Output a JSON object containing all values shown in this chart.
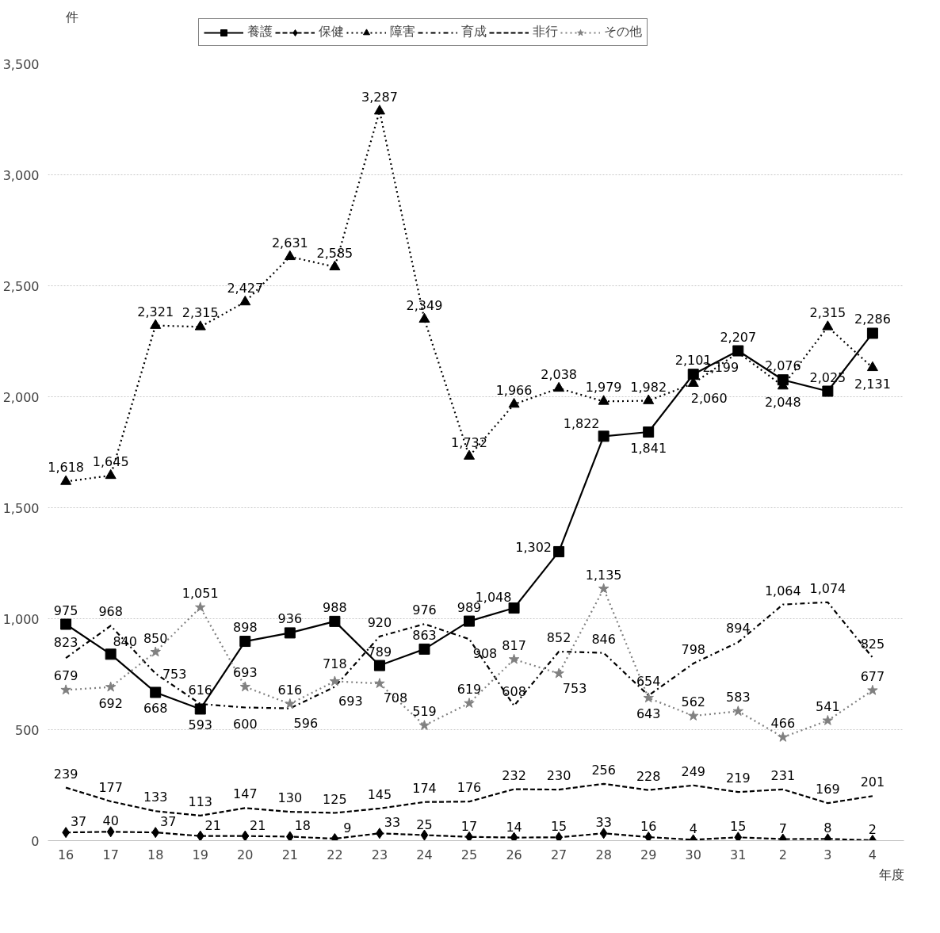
{
  "chart_data": {
    "type": "line",
    "xlabel": "年度",
    "annotations": [
      "件"
    ],
    "categories": [
      "16",
      "17",
      "18",
      "19",
      "20",
      "21",
      "22",
      "23",
      "24",
      "25",
      "26",
      "27",
      "28",
      "29",
      "30",
      "31",
      "2",
      "3",
      "4"
    ],
    "series": [
      {
        "name": "養護",
        "color": "#000000",
        "marker": "square",
        "line_style": "solid",
        "values": [
          975,
          840,
          668,
          593,
          898,
          936,
          988,
          789,
          863,
          989,
          1048,
          1302,
          1822,
          1841,
          2101,
          2207,
          2076,
          2025,
          2286
        ],
        "value_labels": [
          "975",
          "840",
          "668",
          "593",
          "898",
          "936",
          "988",
          "789",
          "863",
          "989",
          "1,048",
          "1,302",
          "1,822",
          "1,841",
          "2,101",
          "2,207",
          "2,076",
          "2,025",
          "2,286"
        ]
      },
      {
        "name": "保健",
        "color": "#000000",
        "marker": "diamond",
        "line_style": "dashed",
        "values": [
          37,
          40,
          37,
          21,
          21,
          18,
          9,
          33,
          25,
          17,
          14,
          15,
          33,
          16,
          4,
          15,
          7,
          8,
          2
        ],
        "value_labels": [
          "37",
          "40",
          "37",
          "21",
          "21",
          "18",
          "9",
          "33",
          "25",
          "17",
          "14",
          "15",
          "33",
          "16",
          "4",
          "15",
          "7",
          "8",
          "2"
        ]
      },
      {
        "name": "障害",
        "color": "#000000",
        "marker": "triangle",
        "line_style": "dotted",
        "values": [
          1618,
          1645,
          2321,
          2315,
          2427,
          2631,
          2585,
          3287,
          2349,
          1732,
          1966,
          2038,
          1979,
          1982,
          2060,
          2199,
          2048,
          2315,
          2131
        ],
        "value_labels": [
          "1,618",
          "1,645",
          "2,321",
          "2,315",
          "2,427",
          "2,631",
          "2,585",
          "3,287",
          "2,349",
          "1,732",
          "1,966",
          "2,038",
          "1,979",
          "1,982",
          "2,060",
          "2,199",
          "2,048",
          "2,315",
          "2,131"
        ]
      },
      {
        "name": "育成",
        "color": "#000000",
        "marker": "none",
        "line_style": "dashdot",
        "values": [
          823,
          968,
          753,
          616,
          600,
          596,
          693,
          920,
          976,
          908,
          608,
          852,
          846,
          654,
          798,
          894,
          1064,
          1074,
          825
        ],
        "value_labels": [
          "823",
          "968",
          "753",
          "616",
          "600",
          "596",
          "693",
          "920",
          "976",
          "908",
          "608",
          "852",
          "846",
          "654",
          "798",
          "894",
          "1,064",
          "1,074",
          "825"
        ]
      },
      {
        "name": "非行",
        "color": "#000000",
        "marker": "none",
        "line_style": "dashed",
        "values": [
          239,
          177,
          133,
          113,
          147,
          130,
          125,
          145,
          174,
          176,
          232,
          230,
          256,
          228,
          249,
          219,
          231,
          169,
          201
        ],
        "value_labels": [
          "239",
          "177",
          "133",
          "113",
          "147",
          "130",
          "125",
          "145",
          "174",
          "176",
          "232",
          "230",
          "256",
          "228",
          "249",
          "219",
          "231",
          "169",
          "201"
        ]
      },
      {
        "name": "その他",
        "color": "#808080",
        "marker": "star",
        "line_style": "dotted",
        "values": [
          679,
          692,
          850,
          1051,
          693,
          616,
          718,
          708,
          519,
          619,
          817,
          753,
          1135,
          643,
          562,
          583,
          466,
          541,
          677
        ],
        "value_labels": [
          "679",
          "692",
          "850",
          "1,051",
          "693",
          "616",
          "718",
          "708",
          "519",
          "619",
          "817",
          "753",
          "1,135",
          "643",
          "562",
          "583",
          "466",
          "541",
          "677"
        ]
      }
    ],
    "ylim": [
      0,
      3500
    ],
    "yticks": [
      0,
      {
        "value": 500,
        "label": "500"
      },
      {
        "value": 1000,
        "label": "1,000"
      },
      {
        "value": 1500,
        "label": "1,500"
      },
      {
        "value": 2000,
        "label": "2,000"
      },
      {
        "value": 2500,
        "label": "2,500"
      },
      {
        "value": 3000,
        "label": "3,000"
      },
      {
        "value": 3500,
        "label": "3,500"
      }
    ],
    "grid": "y",
    "legend": "top"
  }
}
